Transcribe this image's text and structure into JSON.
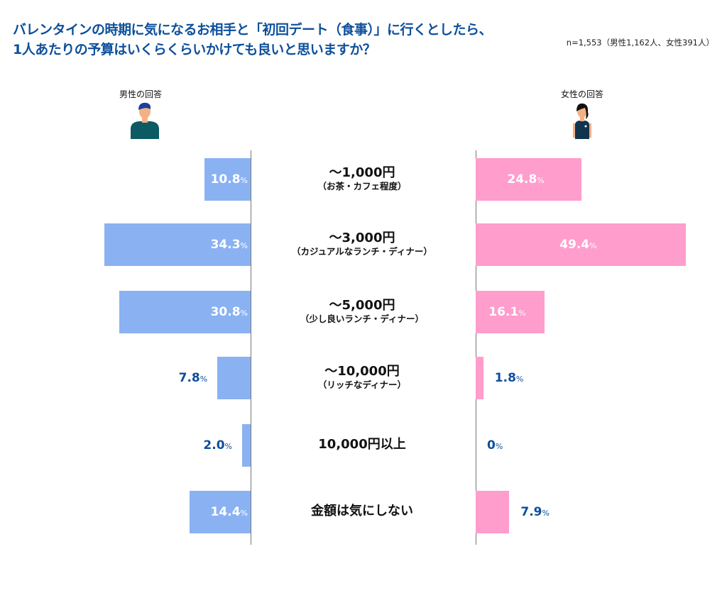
{
  "chart_data": {
    "type": "bar",
    "title_line1": "バレンタインの時期に気になるお相手と「初回デート（食事）」に行くとしたら、",
    "title_line2": "1人あたりの予算はいくらくらいかけても良いと思いますか？",
    "sample_note": "n=1,553（男性1,162人、女性391人）",
    "categories": [
      {
        "main": "〜1,000円",
        "sub": "（お茶・カフェ程度）"
      },
      {
        "main": "〜3,000円",
        "sub": "（カジュアルなランチ・ディナー）"
      },
      {
        "main": "〜5,000円",
        "sub": "（少し良いランチ・ディナー）"
      },
      {
        "main": "〜10,000円",
        "sub": "（リッチなディナー）"
      },
      {
        "main": "10,000円以上",
        "sub": ""
      },
      {
        "main": "金額は気にしない",
        "sub": ""
      }
    ],
    "series": [
      {
        "name": "男性の回答",
        "values": [
          10.8,
          34.3,
          30.8,
          7.8,
          2.0,
          14.4
        ],
        "labels": [
          "10.8",
          "34.3",
          "30.8",
          "7.8",
          "2.0",
          "14.4"
        ],
        "color": "#8ab2f2"
      },
      {
        "name": "女性の回答",
        "values": [
          24.8,
          49.4,
          16.1,
          1.8,
          0,
          7.9
        ],
        "labels": [
          "24.8",
          "49.4",
          "16.1",
          "1.8",
          "0",
          "7.9"
        ],
        "color": "#ff9dcc"
      }
    ],
    "unit": "%",
    "label_dark_color": "#0d4f9b"
  }
}
